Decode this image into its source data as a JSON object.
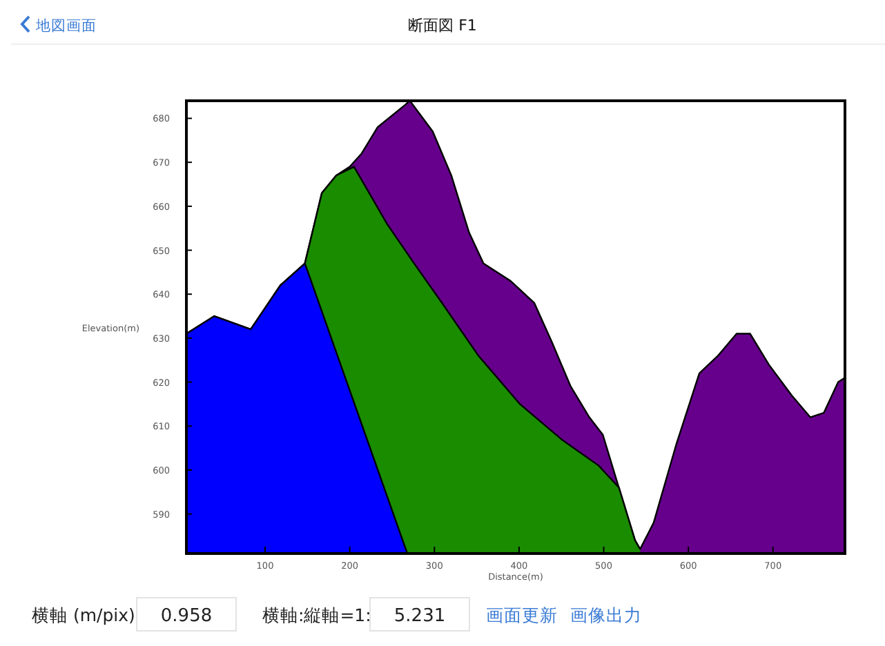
{
  "chart_data": {
    "type": "area",
    "title": "断面図 F1",
    "xlabel": "Distance(m)",
    "ylabel": "Elevation(m)",
    "xlim": [
      7,
      785
    ],
    "ylim": [
      581,
      684
    ],
    "xticks": [
      100,
      200,
      300,
      400,
      500,
      600,
      700
    ],
    "yticks": [
      590,
      600,
      610,
      620,
      630,
      640,
      650,
      660,
      670,
      680
    ],
    "grid": false,
    "series": [
      {
        "color": "#66008c",
        "x": [
          7,
          40,
          83,
          118,
          147,
          167,
          184,
          200,
          214,
          233,
          265,
          271,
          298,
          320,
          341,
          358,
          390,
          418,
          439,
          461,
          483,
          499,
          521,
          537,
          543,
          559,
          586,
          613,
          635,
          657,
          673,
          695,
          722,
          744,
          760,
          777,
          785
        ],
        "values": [
          631,
          635,
          632,
          642,
          647,
          663,
          667,
          669,
          672,
          678,
          683,
          684,
          677,
          667,
          654,
          647,
          643,
          638,
          629,
          619,
          612,
          608,
          594,
          584,
          582,
          588,
          606,
          622,
          626,
          631,
          631,
          624,
          617,
          612,
          613,
          620,
          621
        ]
      },
      {
        "color": "#1a8c00",
        "x": [
          147,
          167,
          184,
          205,
          244,
          276,
          309,
          352,
          401,
          450,
          494,
          518,
          537,
          543
        ],
        "values": [
          647,
          663,
          667,
          669,
          656,
          647,
          638,
          626,
          615,
          607,
          601,
          596,
          584,
          582
        ]
      },
      {
        "color": "#0000ff",
        "x": [
          7,
          40,
          83,
          118,
          147,
          268
        ],
        "values": [
          631,
          635,
          632,
          642,
          647,
          581
        ]
      }
    ],
    "annotations": [
      "地図画面",
      "横軸 (m/pix)",
      "0.958",
      "横軸:縦軸=1:",
      "5.231",
      "画面更新",
      "画像出力"
    ]
  }
}
